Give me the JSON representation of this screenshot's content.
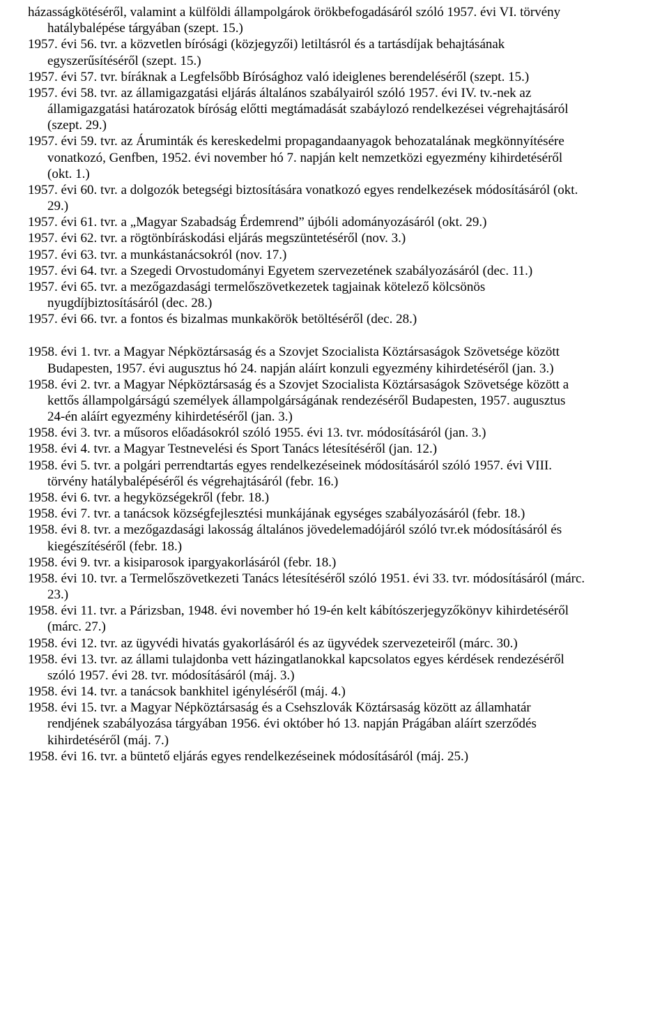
{
  "entries_1957": [
    "házasságkötéséről, valamint a külföldi állampolgárok örökbefogadásáról szóló 1957. évi VI. törvény hatálybalépése tárgyában (szept. 15.)",
    "1957. évi 56. tvr. a közvetlen bírósági (közjegyzői) letiltásról és a tartásdíjak behajtásának egyszerűsítéséről (szept. 15.)",
    "1957. évi 57. tvr. bíráknak a Legfelsőbb Bírósághoz való ideiglenes berendeléséről (szept. 15.)",
    "1957. évi 58. tvr. az államigazgatási eljárás általános szabályairól szóló 1957. évi IV. tv.-nek az államigazgatási határozatok bíróság előtti megtámadását szabáylozó rendelkezései végrehajtásáról (szept. 29.)",
    "1957. évi 59. tvr. az Áruminták és kereskedelmi propagandaanyagok behozatalának megkönnyítésére vonatkozó, Genfben, 1952. évi november hó 7. napján kelt nemzetközi egyezmény kihirdetéséről (okt. 1.)",
    "1957. évi 60. tvr. a dolgozók betegségi biztosítására vonatkozó egyes rendelkezések módosításáról (okt. 29.)",
    "1957. évi 61. tvr. a „Magyar Szabadság Érdemrend” újbóli adományozásáról (okt. 29.)",
    "1957. évi 62. tvr. a rögtönbíráskodási eljárás megszüntetéséről (nov. 3.)",
    "1957. évi 63. tvr. a munkástanácsokról (nov. 17.)",
    "1957. évi 64. tvr. a Szegedi Orvostudományi Egyetem szervezetének szabályozásáról (dec. 11.)",
    "1957. évi 65. tvr. a mezőgazdasági termelőszövetkezetek tagjainak kötelező kölcsönös nyugdíjbiztosításáról (dec. 28.)",
    "1957. évi 66. tvr. a fontos és bizalmas munkakörök betöltéséről (dec. 28.)"
  ],
  "entries_1958": [
    "1958. évi 1. tvr. a Magyar Népköztársaság és a Szovjet Szocialista Köztársaságok Szövetsége között Budapesten, 1957. évi augusztus hó 24. napján aláírt konzuli egyezmény kihirdetéséről (jan. 3.)",
    "1958. évi 2. tvr. a Magyar Népköztársaság és a Szovjet Szocialista Köztársaságok Szövetsége között a kettős állampolgárságú személyek állampolgárságának rendezéséről Budapesten, 1957. augusztus 24-én aláírt egyezmény kihirdetéséről (jan. 3.)",
    "1958. évi 3. tvr. a műsoros előadásokról szóló 1955. évi 13. tvr. módosításáról (jan. 3.)",
    "1958. évi 4. tvr. a Magyar Testnevelési és Sport Tanács létesítéséről (jan. 12.)",
    "1958. évi 5. tvr. a polgári perrendtartás egyes rendelkezéseinek módosításáról szóló 1957. évi VIII. törvény hatálybalépéséről és végrehajtásáról (febr. 16.)",
    "1958. évi 6. tvr. a hegyközségekről (febr. 18.)",
    "1958. évi 7. tvr. a tanácsok községfejlesztési munkájának egységes szabályozásáról (febr. 18.)",
    "1958. évi 8. tvr. a mezőgazdasági lakosság általános jövedelemadójáról szóló tvr.ek módosításáról és kiegészítéséről (febr. 18.)",
    "1958. évi 9. tvr. a kisiparosok ipargyakorlásáról (febr. 18.)",
    "1958. évi 10. tvr. a Termelőszövetkezeti Tanács létesítéséről szóló 1951. évi 33. tvr. módosításáról (márc. 23.)",
    "1958. évi 11. tvr. a Párizsban, 1948. évi november hó 19-én kelt kábítószerjegyzőkönyv kihirdetéséről (márc. 27.)",
    "1958. évi 12. tvr. az ügyvédi hivatás gyakorlásáról és az ügyvédek szervezeteiről (márc. 30.)",
    "1958. évi 13. tvr. az állami tulajdonba vett házingatlanokkal kapcsolatos egyes kérdések rendezéséről szóló 1957. évi 28. tvr. módosításáról (máj. 3.)",
    "1958. évi 14. tvr. a tanácsok bankhitel igényléséről (máj. 4.)",
    "1958. évi 15. tvr. a Magyar Népköztársaság és a Csehszlovák Köztársaság között az államhatár rendjének szabályozása tárgyában 1956. évi október hó 13. napján Prágában aláírt szerződés kihirdetéséről (máj. 7.)",
    "1958. évi 16. tvr. a büntető eljárás egyes rendelkezéseinek módosításáról (máj. 25.)"
  ]
}
